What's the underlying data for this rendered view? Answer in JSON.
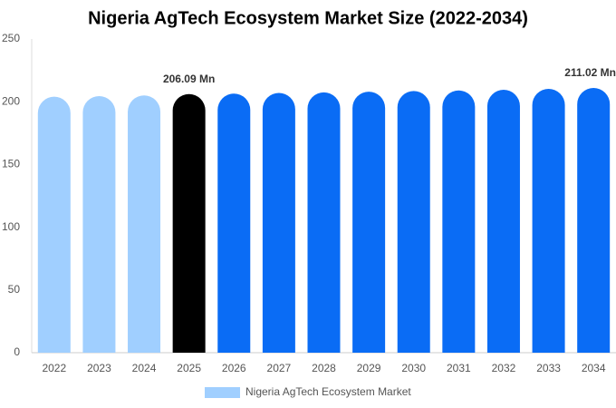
{
  "chart_data": {
    "type": "bar",
    "title": "Nigeria AgTech Ecosystem Market Size (2022-2034)",
    "categories": [
      "2022",
      "2023",
      "2024",
      "2025",
      "2026",
      "2027",
      "2028",
      "2029",
      "2030",
      "2031",
      "2032",
      "2033",
      "2034"
    ],
    "series": [
      {
        "name": "Nigeria AgTech Ecosystem Market",
        "color": "#a0cfff",
        "values": [
          204,
          204.5,
          205,
          206.09,
          206.5,
          207,
          207.5,
          208,
          208.5,
          209,
          209.5,
          210.3,
          211.02
        ],
        "value_labels": [
          null,
          null,
          null,
          "206.09 Mn",
          null,
          null,
          null,
          null,
          null,
          null,
          null,
          null,
          "211.02 Mn"
        ],
        "colors": [
          "#a0cfff",
          "#a0cfff",
          "#a0cfff",
          "#000000",
          "#0a6cf5",
          "#0a6cf5",
          "#0a6cf5",
          "#0a6cf5",
          "#0a6cf5",
          "#0a6cf5",
          "#0a6cf5",
          "#0a6cf5",
          "#0a6cf5"
        ]
      }
    ],
    "ylim": [
      0,
      250
    ],
    "yticks": [
      0,
      50,
      100,
      150,
      200,
      250
    ],
    "grid": false,
    "legend": "bottom"
  }
}
